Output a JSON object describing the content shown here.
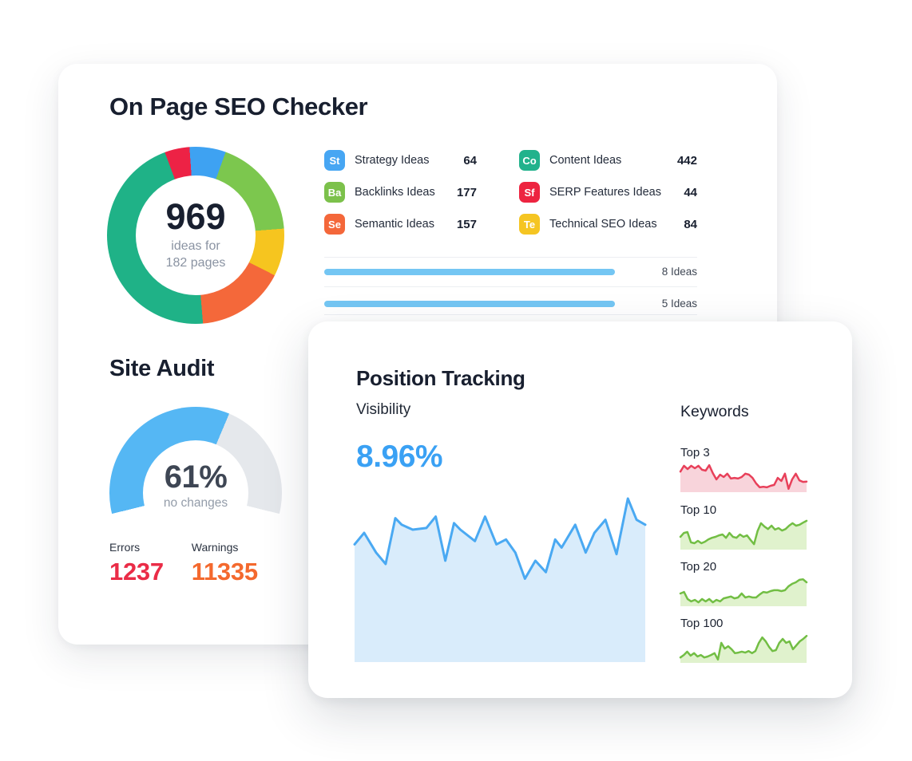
{
  "seo_checker": {
    "title": "On Page SEO Checker",
    "donut": {
      "center_value": "969",
      "center_sub1": "ideas for",
      "center_sub2": "182 pages"
    },
    "legend": {
      "col1": [
        {
          "abbr": "St",
          "color": "#47A6F3",
          "label": "Strategy Ideas",
          "value": "64"
        },
        {
          "abbr": "Ba",
          "color": "#7CC14B",
          "label": "Backlinks Ideas",
          "value": "177"
        },
        {
          "abbr": "Se",
          "color": "#F4673A",
          "label": "Semantic Ideas",
          "value": "157"
        }
      ],
      "col2": [
        {
          "abbr": "Co",
          "color": "#22B28C",
          "label": "Content Ideas",
          "value": "442"
        },
        {
          "abbr": "Sf",
          "color": "#ED2440",
          "label": "SERP Features Ideas",
          "value": "44"
        },
        {
          "abbr": "Te",
          "color": "#F5C522",
          "label": "Technical SEO Ideas",
          "value": "84"
        }
      ]
    },
    "bars": [
      {
        "label": "8 Ideas",
        "width_pct": 78
      },
      {
        "label": "5 Ideas",
        "width_pct": 78
      }
    ],
    "bar_color": "#74C6F3"
  },
  "site_audit": {
    "title": "Site Audit",
    "gauge": {
      "value_label": "61%",
      "sub_label": "no changes"
    },
    "stats": [
      {
        "label": "Errors",
        "value": "1237",
        "color": "#EA2C47"
      },
      {
        "label": "Warnings",
        "value": "11335",
        "color": "#F4692E"
      }
    ]
  },
  "position_tracking": {
    "title": "Position Tracking",
    "visibility_label": "Visibility",
    "visibility_value": "8.96%",
    "visibility_color": "#3AA1F4",
    "keywords_heading": "Keywords",
    "keywords": [
      {
        "label": "Top 3"
      },
      {
        "label": "Top 10"
      },
      {
        "label": "Top 20"
      },
      {
        "label": "Top 100"
      }
    ]
  },
  "chart_data": [
    {
      "id": "seo-ideas-donut",
      "type": "pie",
      "title": "On Page SEO Checker ideas by type",
      "center_text": "969 ideas for 182 pages",
      "labels": [
        "Strategy Ideas",
        "Backlinks Ideas",
        "Technical SEO Ideas",
        "Semantic Ideas",
        "Content Ideas",
        "SERP Features Ideas"
      ],
      "values": [
        64,
        177,
        84,
        157,
        442,
        44
      ],
      "colors": [
        "#3EA2F2",
        "#7CC74E",
        "#F6C51F",
        "#F4683A",
        "#1FB287",
        "#ED2245"
      ],
      "start_angle_deg": -4,
      "inner_radius_pct": 67
    },
    {
      "id": "site-audit-gauge",
      "type": "pie",
      "variant": "half-gauge",
      "title": "Site Audit health score",
      "value_pct": 61,
      "value_label": "61%",
      "label": "no changes",
      "sweep_deg": 208,
      "colors": {
        "fill": "#55B7F4",
        "track": "#E5E8EC"
      }
    },
    {
      "id": "visibility-trend",
      "type": "area",
      "title": "Visibility",
      "value_label": "8.96%",
      "line_color": "#4AA9F2",
      "fill_color": "#D9ECFB",
      "x_range": [
        0,
        100
      ],
      "y_range": [
        0,
        100
      ],
      "points": [
        [
          0,
          28
        ],
        [
          3.3,
          21
        ],
        [
          7.4,
          33
        ],
        [
          10.7,
          40
        ],
        [
          14,
          12
        ],
        [
          16.2,
          16
        ],
        [
          20,
          19
        ],
        [
          24.7,
          18
        ],
        [
          27.9,
          11
        ],
        [
          31.2,
          38
        ],
        [
          34.2,
          15
        ],
        [
          36.4,
          19
        ],
        [
          41.4,
          26
        ],
        [
          44.9,
          11
        ],
        [
          48.8,
          28
        ],
        [
          52.1,
          25
        ],
        [
          55.3,
          33
        ],
        [
          58.6,
          49
        ],
        [
          62.2,
          38
        ],
        [
          65.8,
          45
        ],
        [
          69,
          25
        ],
        [
          71.2,
          30
        ],
        [
          75.9,
          16
        ],
        [
          79.5,
          33
        ],
        [
          82.5,
          21
        ],
        [
          86.3,
          13
        ],
        [
          90.1,
          34
        ],
        [
          94,
          0
        ],
        [
          97,
          13
        ],
        [
          100,
          16
        ]
      ]
    },
    {
      "id": "keywords-top-3",
      "type": "area",
      "label": "Top 3",
      "line_color": "#E8405A",
      "fill_color": "#F8D4DB",
      "values": [
        32,
        13,
        24,
        13,
        21,
        13,
        26,
        29,
        11,
        37,
        58,
        42,
        50,
        39,
        55,
        53,
        55,
        50,
        39,
        42,
        53,
        71,
        84,
        82,
        84,
        79,
        76,
        53,
        63,
        39,
        89,
        58,
        39,
        61,
        66,
        65
      ]
    },
    {
      "id": "keywords-top-10",
      "type": "area",
      "label": "Top 10",
      "line_color": "#72BE44",
      "fill_color": "#E0F2CD",
      "values": [
        58,
        45,
        42,
        76,
        79,
        71,
        79,
        74,
        66,
        61,
        58,
        53,
        50,
        61,
        45,
        58,
        61,
        50,
        58,
        53,
        68,
        82,
        39,
        13,
        24,
        32,
        21,
        34,
        29,
        37,
        32,
        21,
        13,
        21,
        18,
        11,
        5
      ]
    },
    {
      "id": "keywords-top-20",
      "type": "area",
      "label": "Top 20",
      "line_color": "#72BE44",
      "fill_color": "#E0F2CD",
      "values": [
        58,
        53,
        76,
        84,
        79,
        87,
        76,
        84,
        76,
        87,
        79,
        84,
        74,
        71,
        68,
        74,
        71,
        58,
        71,
        68,
        71,
        71,
        61,
        53,
        55,
        50,
        47,
        47,
        50,
        47,
        34,
        26,
        21,
        13,
        11,
        21
      ]
    },
    {
      "id": "keywords-top-100",
      "type": "area",
      "label": "Top 100",
      "line_color": "#72BE44",
      "fill_color": "#E0F2CD",
      "values": [
        82,
        74,
        63,
        76,
        68,
        79,
        74,
        82,
        79,
        74,
        68,
        89,
        34,
        53,
        45,
        55,
        68,
        66,
        63,
        66,
        61,
        68,
        61,
        34,
        16,
        29,
        47,
        61,
        58,
        34,
        21,
        34,
        29,
        55,
        42,
        29,
        21,
        11
      ]
    }
  ]
}
